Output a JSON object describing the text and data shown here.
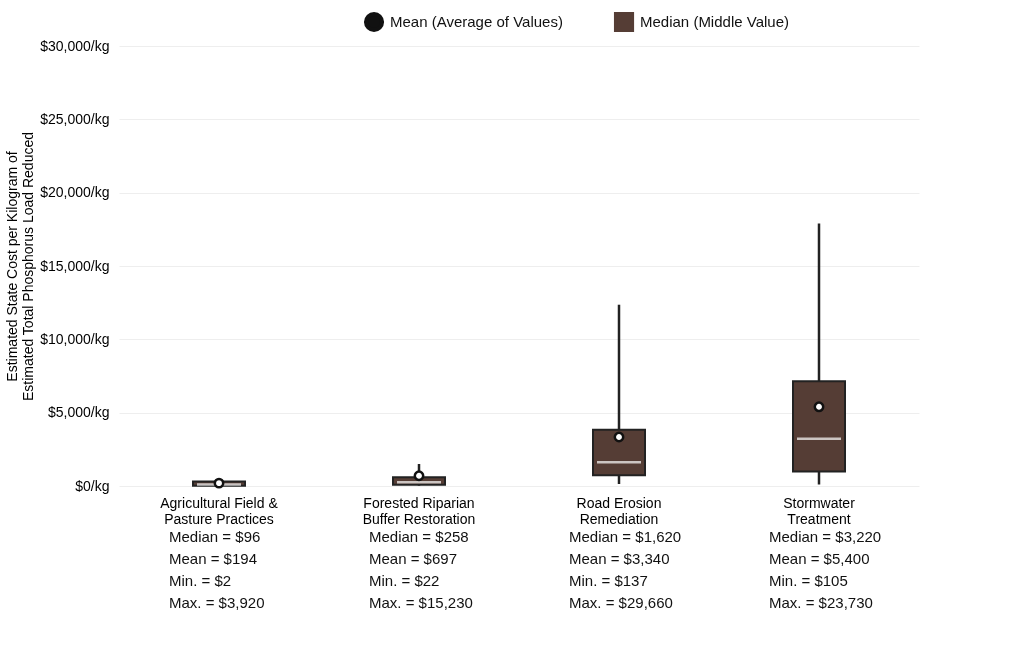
{
  "chart_data": {
    "type": "box",
    "ylabel": "Estimated State Cost per Kilogram of\nEstimated Total Phosphorus Load Reduced",
    "categories": [
      "Agricultural Field &\nPasture Practices",
      "Forested Riparian\nBuffer Restoration",
      "Road Erosion\nRemediation",
      "Stormwater\nTreatment"
    ],
    "series": [
      {
        "name": "Mean (Average of Values)",
        "type": "scatter",
        "color": "#111111",
        "x": [
          "Agricultural Field &\nPasture Practices",
          "Forested Riparian\nBuffer Restoration",
          "Road Erosion\nRemediation",
          "Stormwater\nTreatment"
        ],
        "values": [
          194,
          697,
          3340,
          5400
        ]
      },
      {
        "name": "Median (Middle Value)",
        "color": "#553d35",
        "boxes": [
          {
            "low": 2,
            "q1": 20,
            "median": 96,
            "q3": 300,
            "high": 530
          },
          {
            "low": 22,
            "q1": 80,
            "median": 258,
            "q3": 600,
            "high": 1500
          },
          {
            "low": 137,
            "q1": 730,
            "median": 1620,
            "q3": 3830,
            "high": 12360
          },
          {
            "low": 105,
            "q1": 990,
            "median": 3220,
            "q3": 7140,
            "high": 17900
          }
        ]
      }
    ],
    "ylim": [
      0,
      30000
    ],
    "yticks": [
      {
        "value": 0,
        "label": "$0/kg"
      },
      {
        "value": 5000,
        "label": "$5,000/kg"
      },
      {
        "value": 10000,
        "label": "$10,000/kg"
      },
      {
        "value": 15000,
        "label": "$15,000/kg"
      },
      {
        "value": 20000,
        "label": "$20,000/kg"
      },
      {
        "value": 25000,
        "label": "$25,000/kg"
      },
      {
        "value": 30000,
        "label": "$30,000/kg"
      }
    ],
    "grid": "y",
    "legend": "top",
    "annotations": [
      "Median = $96",
      "Mean = $194",
      "Min. = $2",
      "Max. = $3,920",
      "Median = $258",
      "Mean = $697",
      "Min. = $22",
      "Max. = $15,230",
      "Median = $1,620",
      "Mean = $3,340",
      "Min. = $137",
      "Max. = $29,660",
      "Median = $3,220",
      "Mean = $5,400",
      "Min. = $105",
      "Max. = $23,730"
    ]
  }
}
